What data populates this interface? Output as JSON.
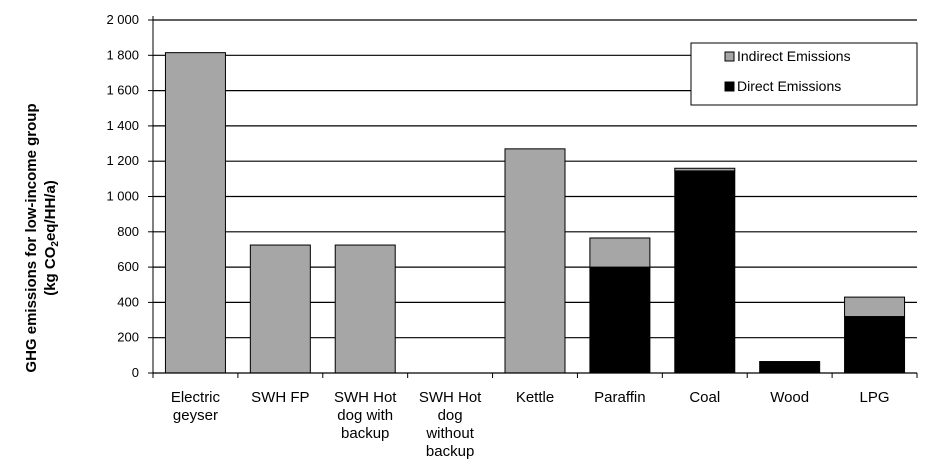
{
  "chart_data": {
    "type": "bar",
    "stacked": true,
    "title": "",
    "ylabel_line1": "GHG emissions for low-income group",
    "ylabel_line2_prefix": "(kg CO",
    "ylabel_line2_sub": "2",
    "ylabel_line2_suffix": "eq/HH/a)",
    "ylim": [
      0,
      2000
    ],
    "yticks": [
      0,
      200,
      400,
      600,
      800,
      1000,
      1200,
      1400,
      1600,
      1800,
      2000
    ],
    "ytick_labels": [
      "0",
      "200",
      "400",
      "600",
      "800",
      "1 000",
      "1 200",
      "1 400",
      "1 600",
      "1 800",
      "2 000"
    ],
    "grid": true,
    "legend_position": "top-right",
    "categories": [
      [
        "Electric",
        "geyser"
      ],
      [
        "SWH FP"
      ],
      [
        "SWH Hot",
        "dog with",
        "backup"
      ],
      [
        "SWH Hot",
        "dog",
        "without",
        "backup"
      ],
      [
        "Kettle"
      ],
      [
        "Paraffin"
      ],
      [
        "Coal"
      ],
      [
        "Wood"
      ],
      [
        "LPG"
      ]
    ],
    "series": [
      {
        "name": "Direct Emissions",
        "color": "#000000",
        "values": [
          0,
          0,
          0,
          0,
          0,
          600,
          1145,
          65,
          320
        ]
      },
      {
        "name": "Indirect Emissions",
        "color": "#a6a6a6",
        "values": [
          1815,
          725,
          725,
          0,
          1270,
          165,
          15,
          0,
          110
        ]
      }
    ],
    "legend_order": [
      "Indirect Emissions",
      "Direct Emissions"
    ]
  }
}
